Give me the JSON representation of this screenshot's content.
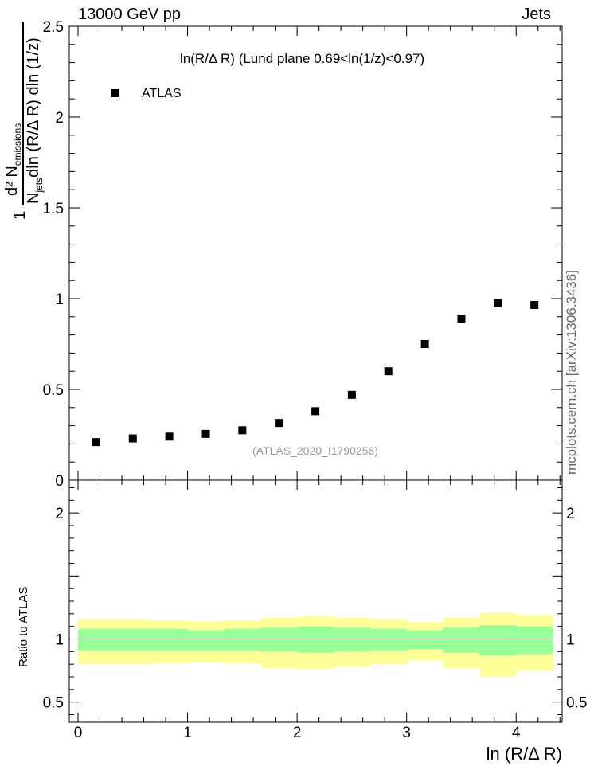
{
  "header": {
    "left": "13000 GeV pp",
    "right": "Jets"
  },
  "watermark": "mcplots.cern.ch [arXiv:1306.3436]",
  "chart_data": [
    {
      "type": "scatter",
      "title": "ln(R/Δ R) (Lund plane 0.69<ln(1/z)<0.97)",
      "xlabel": "ln (R/Δ R)",
      "ylabel_parts": {
        "numerator": "d² N",
        "numerator_sub": "emissions",
        "denominator": "N",
        "denominator_sub": "jets",
        "denominator_rest": "dln (R/Δ R) dln (1/z)",
        "prefactor": "1"
      },
      "xlim": [
        -0.08,
        4.42
      ],
      "ylim": [
        0,
        2.5
      ],
      "yticks": [
        "0",
        "0.5",
        "1",
        "1.5",
        "2",
        "2.5"
      ],
      "xticks": [
        "0",
        "1",
        "2",
        "3",
        "4"
      ],
      "series": [
        {
          "name": "ATLAS",
          "x": [
            0.167,
            0.5,
            0.833,
            1.167,
            1.5,
            1.833,
            2.167,
            2.5,
            2.833,
            3.167,
            3.5,
            3.833,
            4.167
          ],
          "y": [
            0.21,
            0.23,
            0.24,
            0.255,
            0.275,
            0.315,
            0.38,
            0.47,
            0.6,
            0.75,
            0.89,
            0.975,
            0.965
          ]
        }
      ],
      "annotation": "(ATLAS_2020_I1790256)"
    },
    {
      "type": "area",
      "ylabel": "Ratio to ATLAS",
      "ylim": [
        0.34,
        2.26
      ],
      "yticks": [
        "0.5",
        "1",
        "2"
      ],
      "bin_edges": [
        0,
        0.333,
        0.667,
        1.0,
        1.333,
        1.667,
        2.0,
        2.333,
        2.667,
        3.0,
        3.333,
        3.667,
        4.0,
        4.333
      ],
      "bands": [
        {
          "name": "total uncertainty",
          "color": "#ffff99",
          "low": [
            0.8,
            0.8,
            0.81,
            0.82,
            0.81,
            0.77,
            0.76,
            0.78,
            0.8,
            0.83,
            0.77,
            0.7,
            0.75
          ],
          "high": [
            1.16,
            1.16,
            1.15,
            1.14,
            1.15,
            1.17,
            1.18,
            1.17,
            1.16,
            1.13,
            1.17,
            1.21,
            1.19
          ]
        },
        {
          "name": "stat uncertainty",
          "color": "#99ff99",
          "low": [
            0.91,
            0.91,
            0.91,
            0.91,
            0.91,
            0.9,
            0.89,
            0.9,
            0.91,
            0.92,
            0.89,
            0.87,
            0.88
          ],
          "high": [
            1.08,
            1.08,
            1.08,
            1.07,
            1.08,
            1.09,
            1.1,
            1.09,
            1.08,
            1.07,
            1.09,
            1.11,
            1.1
          ]
        }
      ],
      "reference": 1
    }
  ]
}
